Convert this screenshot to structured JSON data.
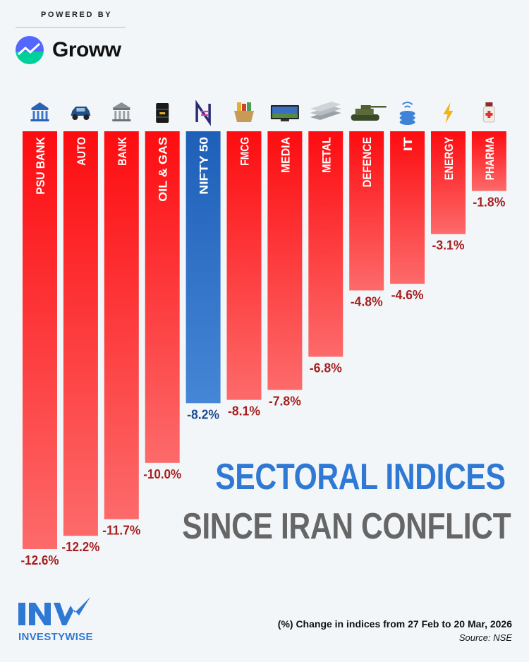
{
  "header": {
    "powered_by": "POWERED BY",
    "brand": "Groww"
  },
  "title": {
    "line1": "SECTORAL INDICES",
    "line2": "SINCE IRAN CONFLICT"
  },
  "footer": {
    "note": "(%) Change in indices from 27 Feb to 20 Mar, 2026",
    "source": "Source: NSE",
    "publisher": "INVESTYWISE",
    "publisher_mark": "INV"
  },
  "colors": {
    "bar_top": "#fd0c10",
    "bar_bottom": "#fd6a6a",
    "highlight_top": "#1e5fb8",
    "highlight_bottom": "#4586d6",
    "value_red": "#a51f1f",
    "value_blue": "#1d4c8f",
    "title_blue": "#2f79d4",
    "title_grey": "#666666"
  },
  "chart_data": {
    "type": "bar",
    "orientation": "vertical-downward",
    "title": "SECTORAL INDICES SINCE IRAN CONFLICT",
    "unit": "%",
    "categories": [
      "PSU BANK",
      "AUTO",
      "BANK",
      "OIL & GAS",
      "NIFTY 50",
      "FMCG",
      "MEDIA",
      "METAL",
      "DEFENCE",
      "IT",
      "ENERGY",
      "PHARMA"
    ],
    "values": [
      -12.6,
      -12.2,
      -11.7,
      -10.0,
      -8.2,
      -8.1,
      -7.8,
      -6.8,
      -4.8,
      -4.6,
      -3.1,
      -1.8
    ],
    "value_labels": [
      "-12.6%",
      "-12.2%",
      "-11.7%",
      "-10.0%",
      "-8.2%",
      "-8.1%",
      "-7.8%",
      "-6.8%",
      "-4.8%",
      "-4.6%",
      "-3.1%",
      "-1.8%"
    ],
    "icons": [
      "bank-building-psu-icon",
      "car-icon",
      "bank-building-icon",
      "oil-barrel-icon",
      "nifty-logo-icon",
      "grocery-basket-icon",
      "tv-icon",
      "metal-beams-icon",
      "tank-icon",
      "database-wifi-icon",
      "lightning-icon",
      "medicine-bottle-icon"
    ],
    "highlight": "NIFTY 50",
    "ylim": [
      -12.6,
      0
    ]
  }
}
